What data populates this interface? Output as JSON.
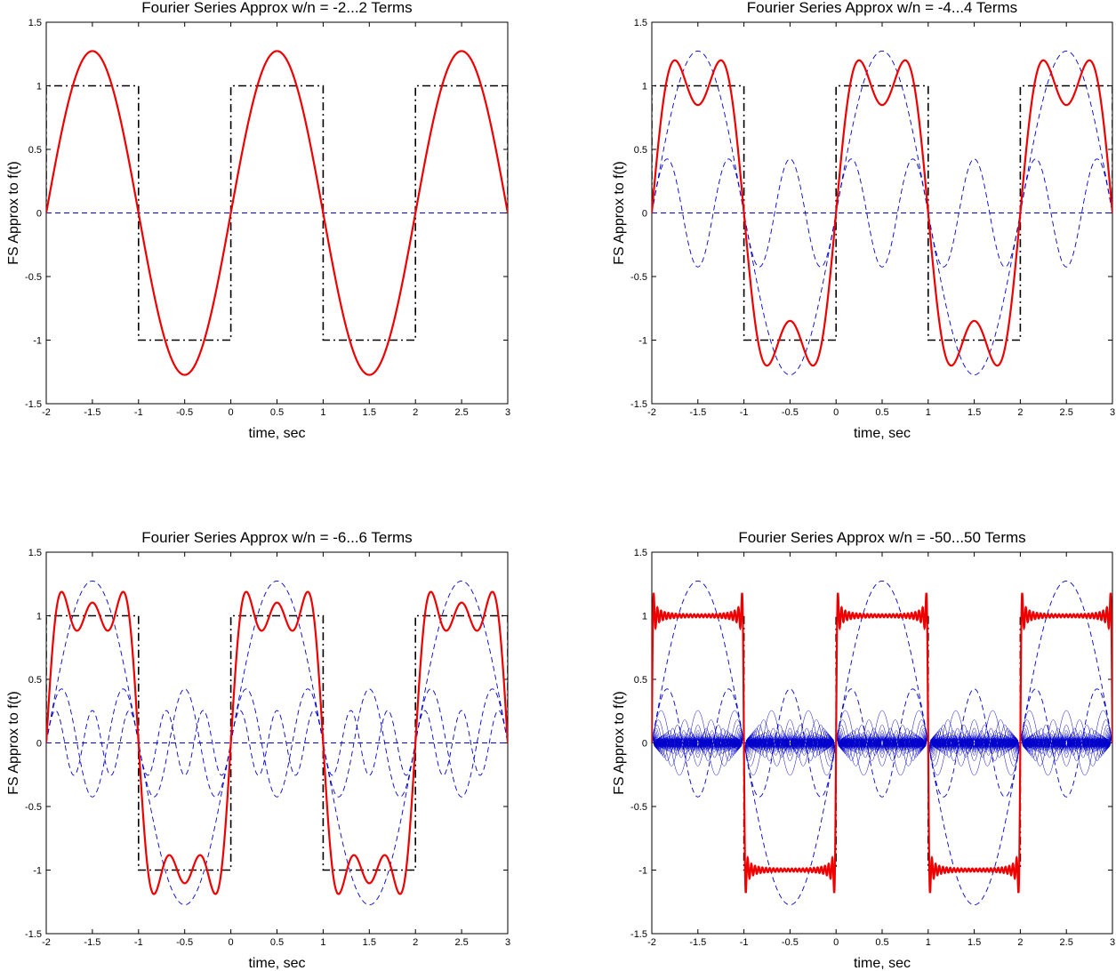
{
  "chart_data": [
    {
      "type": "line",
      "title": "Fourier Series Approx w/n = -2...2 Terms",
      "xlabel": "time, sec",
      "ylabel": "FS Approx to f(t)",
      "xlim": [
        -2,
        3
      ],
      "ylim": [
        -1.5,
        1.5
      ],
      "xticks": [
        -2,
        -1.5,
        -1,
        -0.5,
        0,
        0.5,
        1,
        1.5,
        2,
        2.5,
        3
      ],
      "yticks": [
        -1.5,
        -1,
        -0.5,
        0,
        0.5,
        1,
        1.5
      ],
      "grid": false,
      "n_max": 1,
      "series": [
        {
          "role": "target square wave",
          "style": "dash-dot",
          "color": "#000000",
          "period": 2,
          "amplitude": 1
        },
        {
          "role": "harmonic components",
          "style": "dashed",
          "color": "#0000cc",
          "harmonics": [
            0,
            1
          ],
          "peak_amplitudes": [
            0,
            1.273
          ]
        },
        {
          "role": "Fourier series sum",
          "style": "solid",
          "color": "#ee0000",
          "peak": 1.27
        }
      ]
    },
    {
      "type": "line",
      "title": "Fourier Series Approx w/n = -4...4 Terms",
      "xlabel": "time, sec",
      "ylabel": "FS Approx to f(t)",
      "xlim": [
        -2,
        3
      ],
      "ylim": [
        -1.5,
        1.5
      ],
      "xticks": [
        -2,
        -1.5,
        -1,
        -0.5,
        0,
        0.5,
        1,
        1.5,
        2,
        2.5,
        3
      ],
      "yticks": [
        -1.5,
        -1,
        -0.5,
        0,
        0.5,
        1,
        1.5
      ],
      "grid": false,
      "n_max": 3,
      "series": [
        {
          "role": "target square wave",
          "style": "dash-dot",
          "color": "#000000",
          "period": 2,
          "amplitude": 1
        },
        {
          "role": "harmonic components",
          "style": "dashed",
          "color": "#0000cc",
          "harmonics": [
            0,
            1,
            3
          ],
          "peak_amplitudes": [
            0,
            1.273,
            0.424
          ]
        },
        {
          "role": "Fourier series sum",
          "style": "solid",
          "color": "#ee0000",
          "peak": 1.2
        }
      ]
    },
    {
      "type": "line",
      "title": "Fourier Series Approx w/n = -6...6 Terms",
      "xlabel": "time, sec",
      "ylabel": "FS Approx to f(t)",
      "xlim": [
        -2,
        3
      ],
      "ylim": [
        -1.5,
        1.5
      ],
      "xticks": [
        -2,
        -1.5,
        -1,
        -0.5,
        0,
        0.5,
        1,
        1.5,
        2,
        2.5,
        3
      ],
      "yticks": [
        -1.5,
        -1,
        -0.5,
        0,
        0.5,
        1,
        1.5
      ],
      "grid": false,
      "n_max": 5,
      "series": [
        {
          "role": "target square wave",
          "style": "dash-dot",
          "color": "#000000",
          "period": 2,
          "amplitude": 1
        },
        {
          "role": "harmonic components",
          "style": "dashed",
          "color": "#0000cc",
          "harmonics": [
            0,
            1,
            3,
            5
          ],
          "peak_amplitudes": [
            0,
            1.273,
            0.424,
            0.255
          ]
        },
        {
          "role": "Fourier series sum",
          "style": "solid",
          "color": "#ee0000",
          "peak": 1.19
        }
      ]
    },
    {
      "type": "line",
      "title": "Fourier Series Approx w/n = -50...50 Terms",
      "xlabel": "time, sec",
      "ylabel": "FS Approx to f(t)",
      "xlim": [
        -2,
        3
      ],
      "ylim": [
        -1.5,
        1.5
      ],
      "xticks": [
        -2,
        -1.5,
        -1,
        -0.5,
        0,
        0.5,
        1,
        1.5,
        2,
        2.5,
        3
      ],
      "yticks": [
        -1.5,
        -1,
        -0.5,
        0,
        0.5,
        1,
        1.5
      ],
      "grid": false,
      "n_max": 49,
      "series": [
        {
          "role": "target square wave",
          "style": "dash-dot",
          "color": "#000000",
          "period": 2,
          "amplitude": 1
        },
        {
          "role": "harmonic components",
          "style": "dashed",
          "color": "#0000cc",
          "harmonics": "0, 1, 3, 5, ..., 49"
        },
        {
          "role": "Fourier series sum",
          "style": "solid",
          "color": "#ee0000",
          "peak": 1.18
        }
      ]
    }
  ]
}
